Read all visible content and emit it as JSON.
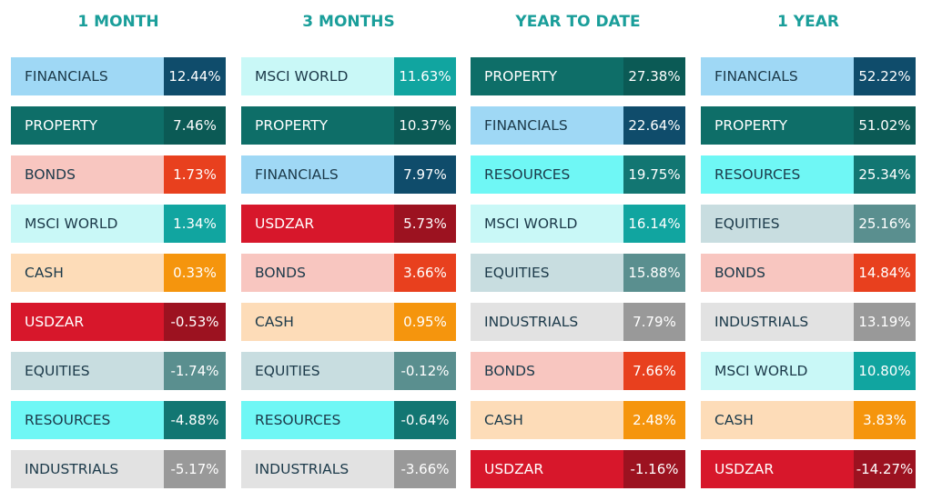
{
  "columns": [
    {
      "title": "1 MONTH",
      "rows": [
        {
          "label": "FINANCIALS",
          "value": "12.44%",
          "color": "#9fd8f5",
          "value_color": "#0f4c6b",
          "text_color": "#1c3a4a"
        },
        {
          "label": "PROPERTY",
          "value": "7.46%",
          "color": "#0e6e68",
          "value_color": "#0b5a55",
          "text_color": "#ffffff"
        },
        {
          "label": "BONDS",
          "value": "1.73%",
          "color": "#f8c6c0",
          "value_color": "#e8401e",
          "text_color": "#1c3a4a"
        },
        {
          "label": "MSCI WORLD",
          "value": "1.34%",
          "color": "#c9f8f7",
          "value_color": "#11a5a0",
          "text_color": "#1c3a4a"
        },
        {
          "label": "CASH",
          "value": "0.33%",
          "color": "#fddcb8",
          "value_color": "#f5950d",
          "text_color": "#1c3a4a"
        },
        {
          "label": "USDZAR",
          "value": "-0.53%",
          "color": "#d7172b",
          "value_color": "#9c1220",
          "text_color": "#ffffff"
        },
        {
          "label": "EQUITIES",
          "value": "-1.74%",
          "color": "#c8dde0",
          "value_color": "#5a8f8f",
          "text_color": "#1c3a4a"
        },
        {
          "label": "RESOURCES",
          "value": "-4.88%",
          "color": "#6ff7f5",
          "value_color": "#127672",
          "text_color": "#1c3a4a"
        },
        {
          "label": "INDUSTRIALS",
          "value": "-5.17%",
          "color": "#e2e2e2",
          "value_color": "#999999",
          "text_color": "#1c3a4a"
        }
      ]
    },
    {
      "title": "3 MONTHS",
      "rows": [
        {
          "label": "MSCI WORLD",
          "value": "11.63%",
          "color": "#c9f8f7",
          "value_color": "#11a5a0",
          "text_color": "#1c3a4a"
        },
        {
          "label": "PROPERTY",
          "value": "10.37%",
          "color": "#0e6e68",
          "value_color": "#0b5a55",
          "text_color": "#ffffff"
        },
        {
          "label": "FINANCIALS",
          "value": "7.97%",
          "color": "#9fd8f5",
          "value_color": "#0f4c6b",
          "text_color": "#1c3a4a"
        },
        {
          "label": "USDZAR",
          "value": "5.73%",
          "color": "#d7172b",
          "value_color": "#9c1220",
          "text_color": "#ffffff"
        },
        {
          "label": "BONDS",
          "value": "3.66%",
          "color": "#f8c6c0",
          "value_color": "#e8401e",
          "text_color": "#1c3a4a"
        },
        {
          "label": "CASH",
          "value": "0.95%",
          "color": "#fddcb8",
          "value_color": "#f5950d",
          "text_color": "#1c3a4a"
        },
        {
          "label": "EQUITIES",
          "value": "-0.12%",
          "color": "#c8dde0",
          "value_color": "#5a8f8f",
          "text_color": "#1c3a4a"
        },
        {
          "label": "RESOURCES",
          "value": "-0.64%",
          "color": "#6ff7f5",
          "value_color": "#127672",
          "text_color": "#1c3a4a"
        },
        {
          "label": "INDUSTRIALS",
          "value": "-3.66%",
          "color": "#e2e2e2",
          "value_color": "#999999",
          "text_color": "#1c3a4a"
        }
      ]
    },
    {
      "title": "YEAR TO DATE",
      "rows": [
        {
          "label": "PROPERTY",
          "value": "27.38%",
          "color": "#0e6e68",
          "value_color": "#0b5a55",
          "text_color": "#ffffff"
        },
        {
          "label": "FINANCIALS",
          "value": "22.64%",
          "color": "#9fd8f5",
          "value_color": "#0f4c6b",
          "text_color": "#1c3a4a"
        },
        {
          "label": "RESOURCES",
          "value": "19.75%",
          "color": "#6ff7f5",
          "value_color": "#127672",
          "text_color": "#1c3a4a"
        },
        {
          "label": "MSCI WORLD",
          "value": "16.14%",
          "color": "#c9f8f7",
          "value_color": "#11a5a0",
          "text_color": "#1c3a4a"
        },
        {
          "label": "EQUITIES",
          "value": "15.88%",
          "color": "#c8dde0",
          "value_color": "#5a8f8f",
          "text_color": "#1c3a4a"
        },
        {
          "label": "INDUSTRIALS",
          "value": "7.79%",
          "color": "#e2e2e2",
          "value_color": "#999999",
          "text_color": "#1c3a4a"
        },
        {
          "label": "BONDS",
          "value": "7.66%",
          "color": "#f8c6c0",
          "value_color": "#e8401e",
          "text_color": "#1c3a4a"
        },
        {
          "label": "CASH",
          "value": "2.48%",
          "color": "#fddcb8",
          "value_color": "#f5950d",
          "text_color": "#1c3a4a"
        },
        {
          "label": "USDZAR",
          "value": "-1.16%",
          "color": "#d7172b",
          "value_color": "#9c1220",
          "text_color": "#ffffff"
        }
      ]
    },
    {
      "title": "1 YEAR",
      "rows": [
        {
          "label": "FINANCIALS",
          "value": "52.22%",
          "color": "#9fd8f5",
          "value_color": "#0f4c6b",
          "text_color": "#1c3a4a"
        },
        {
          "label": "PROPERTY",
          "value": "51.02%",
          "color": "#0e6e68",
          "value_color": "#0b5a55",
          "text_color": "#ffffff"
        },
        {
          "label": "RESOURCES",
          "value": "25.34%",
          "color": "#6ff7f5",
          "value_color": "#127672",
          "text_color": "#1c3a4a"
        },
        {
          "label": "EQUITIES",
          "value": "25.16%",
          "color": "#c8dde0",
          "value_color": "#5a8f8f",
          "text_color": "#1c3a4a"
        },
        {
          "label": "BONDS",
          "value": "14.84%",
          "color": "#f8c6c0",
          "value_color": "#e8401e",
          "text_color": "#1c3a4a"
        },
        {
          "label": "INDUSTRIALS",
          "value": "13.19%",
          "color": "#e2e2e2",
          "value_color": "#999999",
          "text_color": "#1c3a4a"
        },
        {
          "label": "MSCI WORLD",
          "value": "10.80%",
          "color": "#c9f8f7",
          "value_color": "#11a5a0",
          "text_color": "#1c3a4a"
        },
        {
          "label": "CASH",
          "value": "3.83%",
          "color": "#fddcb8",
          "value_color": "#f5950d",
          "text_color": "#1c3a4a"
        },
        {
          "label": "USDZAR",
          "value": "-14.27%",
          "color": "#d7172b",
          "value_color": "#9c1220",
          "text_color": "#ffffff"
        }
      ]
    }
  ]
}
